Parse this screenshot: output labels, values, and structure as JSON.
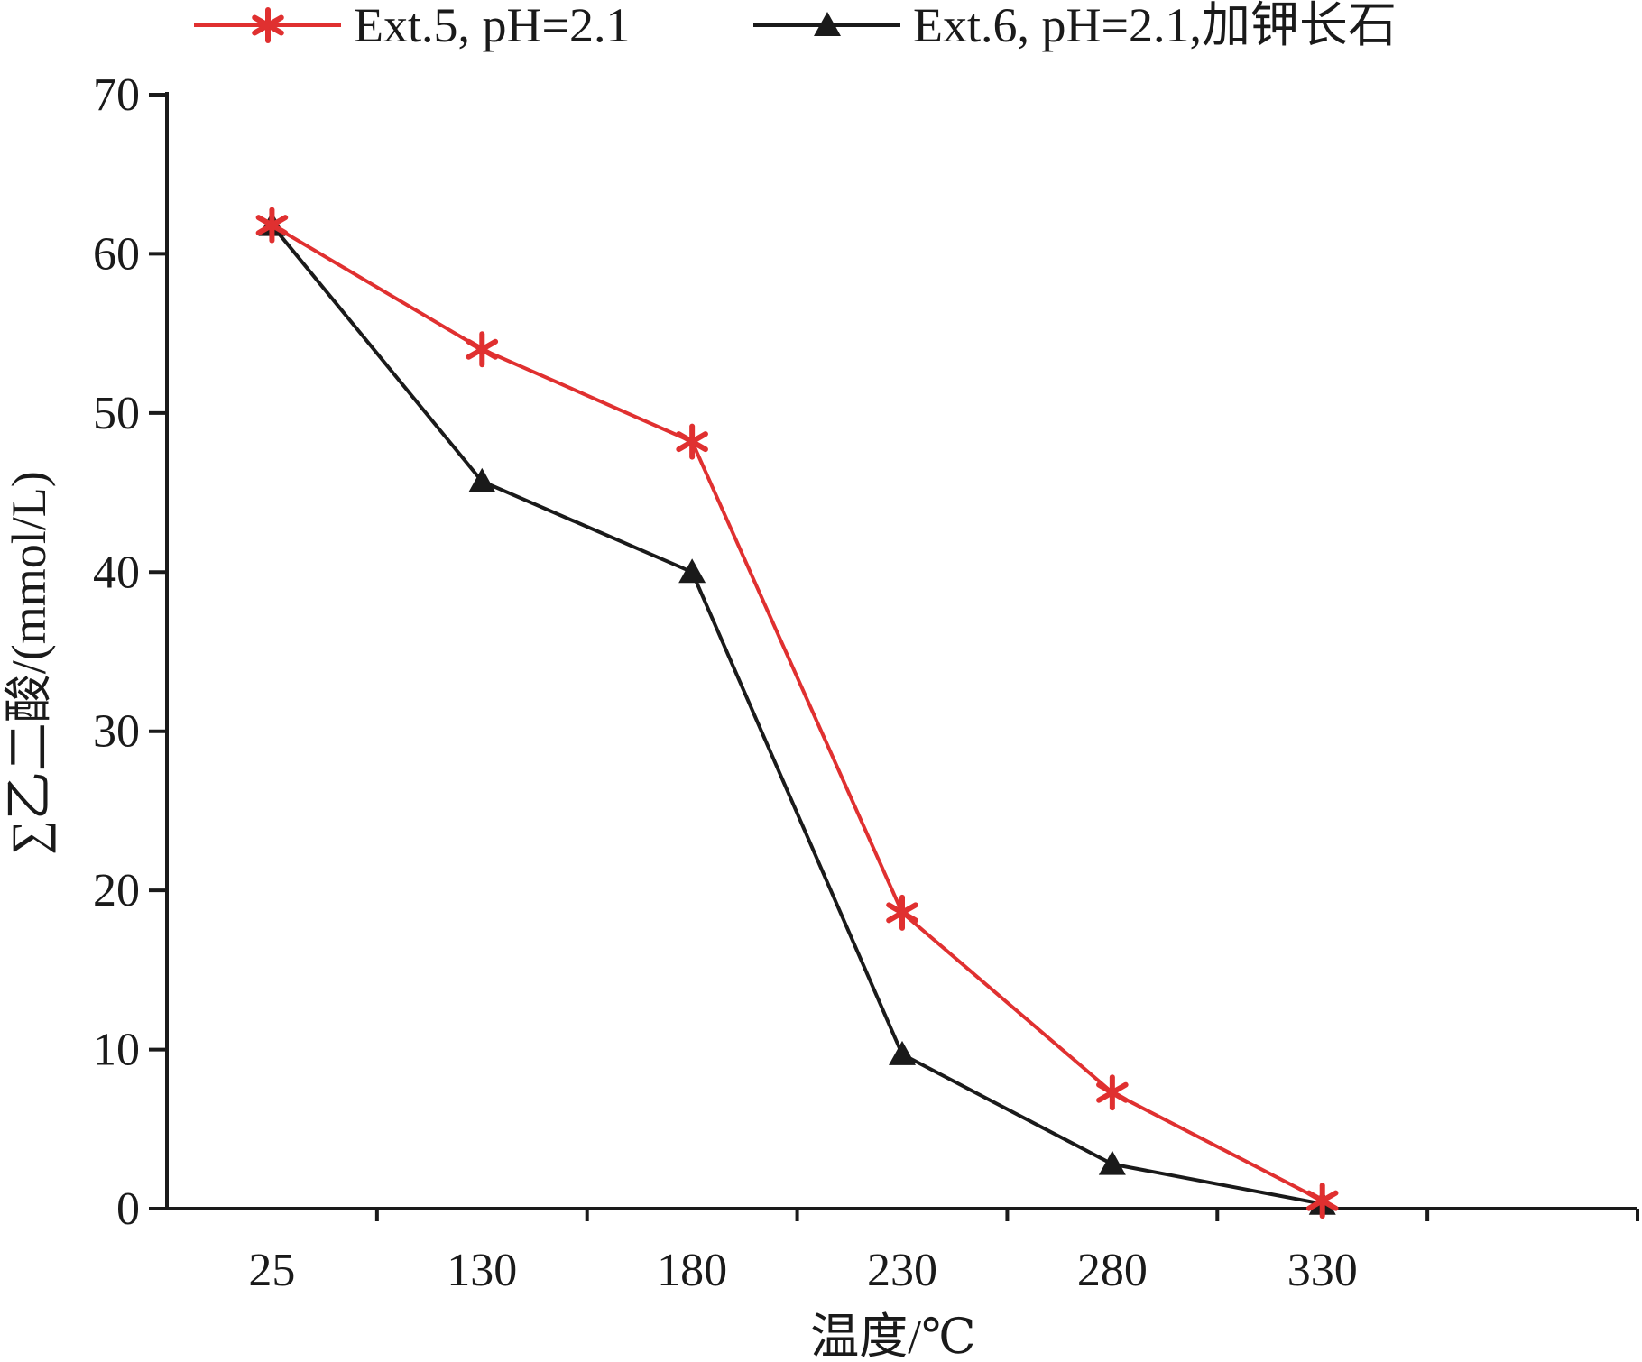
{
  "chart_data": {
    "type": "line",
    "categories": [
      "25",
      "130",
      "180",
      "230",
      "280",
      "330"
    ],
    "series": [
      {
        "name": "Ext.5, pH=2.1",
        "values": [
          61.8,
          54.0,
          48.2,
          18.6,
          7.3,
          0.5
        ],
        "color": "#e03030",
        "marker": "asterisk"
      },
      {
        "name": "Ext.6, pH=2.1,加钾长石",
        "values": [
          61.8,
          45.7,
          40.0,
          9.7,
          2.8,
          0.3
        ],
        "color": "#1a1a1a",
        "marker": "triangle"
      }
    ],
    "xlabel": "温度/℃",
    "ylabel": "∑乙二酸/(mmol/L)",
    "ylim": [
      0,
      70
    ],
    "yticks": [
      0,
      10,
      20,
      30,
      40,
      50,
      60,
      70
    ],
    "grid": false,
    "legend_position": "top"
  }
}
